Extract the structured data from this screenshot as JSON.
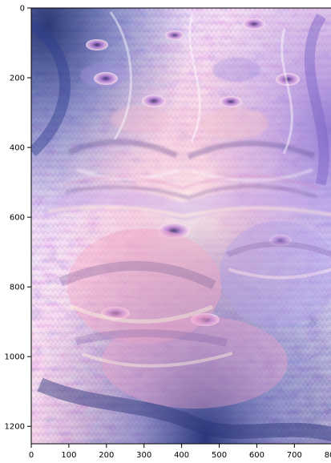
{
  "figure": {
    "image_description_kind": "deep-dream style psychedelic image",
    "colors": {
      "background": "#ffffff",
      "frame": "#000000",
      "purple": "#8a74c8",
      "lavender": "#b7a6ea",
      "pink": "#f0a6cf",
      "peach": "#f4c2a7",
      "blue": "#3d4f98",
      "dark": "#4d3e73"
    }
  },
  "chart_data": {
    "type": "image",
    "x": {
      "range": [
        0,
        840
      ],
      "ticks": [
        0,
        100,
        200,
        300,
        400,
        500,
        600,
        700,
        800
      ],
      "tick_labels": [
        "0",
        "100",
        "200",
        "300",
        "400",
        "500",
        "600",
        "700",
        "800"
      ]
    },
    "y": {
      "range": [
        0,
        1250
      ],
      "inverted": true,
      "ticks": [
        0,
        200,
        400,
        600,
        800,
        1000,
        1200
      ],
      "tick_labels": [
        "0",
        "200",
        "400",
        "600",
        "800",
        "1000",
        "1200"
      ]
    },
    "grid": false,
    "legend": "none"
  }
}
